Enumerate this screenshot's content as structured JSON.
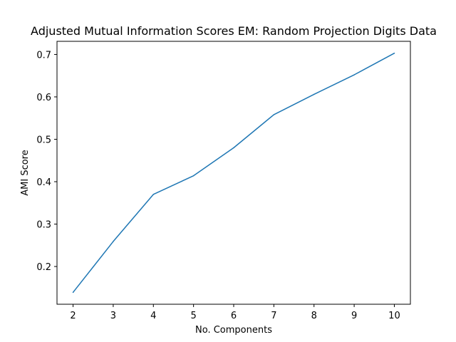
{
  "chart_data": {
    "type": "line",
    "title": "Adjusted Mutual Information Scores EM: Random Projection Digits Data",
    "xlabel": "No. Components",
    "ylabel": "AMI Score",
    "x": [
      2,
      3,
      4,
      5,
      6,
      7,
      8,
      9,
      10
    ],
    "series": [
      {
        "name": "AMI Score",
        "color": "#1f77b4",
        "values": [
          0.139,
          0.259,
          0.37,
          0.414,
          0.48,
          0.558,
          0.606,
          0.652,
          0.703
        ]
      }
    ],
    "xticks": [
      2,
      3,
      4,
      5,
      6,
      7,
      8,
      9,
      10
    ],
    "yticks": [
      0.2,
      0.3,
      0.4,
      0.5,
      0.6,
      0.7
    ],
    "ytick_labels": [
      "0.2",
      "0.3",
      "0.4",
      "0.5",
      "0.6",
      "0.7"
    ],
    "xlim": [
      1.6,
      10.4
    ],
    "ylim": [
      0.111,
      0.731
    ],
    "grid": false,
    "legend": "none"
  }
}
